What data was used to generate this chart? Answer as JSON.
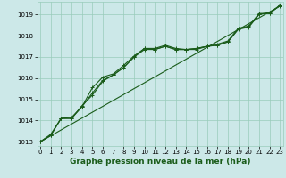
{
  "title": "Graphe pression niveau de la mer (hPa)",
  "background_color": "#cce8e8",
  "grid_color": "#99ccbb",
  "line_color": "#1a5c1a",
  "x_ticks": [
    0,
    1,
    2,
    3,
    4,
    5,
    6,
    7,
    8,
    9,
    10,
    11,
    12,
    13,
    14,
    15,
    16,
    17,
    18,
    19,
    20,
    21,
    22,
    23
  ],
  "ylim": [
    1012.8,
    1019.6
  ],
  "xlim": [
    -0.3,
    23.3
  ],
  "y_ticks": [
    1013,
    1014,
    1015,
    1016,
    1017,
    1018,
    1019
  ],
  "series": [
    [
      1013.0,
      1013.3,
      1014.1,
      1014.1,
      1014.7,
      1015.2,
      1015.85,
      1016.15,
      1016.5,
      1017.0,
      1017.4,
      1017.35,
      1017.5,
      1017.35,
      1017.35,
      1017.4,
      1017.5,
      1017.55,
      1017.7,
      1018.3,
      1018.4,
      1019.0,
      1019.1,
      1019.4
    ],
    [
      1013.0,
      1013.35,
      1014.1,
      1014.15,
      1014.65,
      1015.55,
      1016.05,
      1016.2,
      1016.6,
      1017.05,
      1017.4,
      1017.4,
      1017.55,
      1017.4,
      1017.35,
      1017.4,
      1017.5,
      1017.6,
      1017.75,
      1018.35,
      1018.45,
      1019.05,
      1019.05,
      1019.45
    ],
    [
      1013.0,
      1013.3,
      1014.1,
      1014.1,
      1014.65,
      1015.3,
      1015.9,
      1016.15,
      1016.5,
      1017.0,
      1017.35,
      1017.35,
      1017.5,
      1017.35,
      1017.35,
      1017.35,
      1017.5,
      1017.55,
      1017.72,
      1018.32,
      1018.42,
      1019.02,
      1019.05,
      1019.42
    ]
  ],
  "straight_line": [
    1013.0,
    1019.4
  ],
  "marker": "+",
  "marker_size": 3.5,
  "linewidth": 0.8,
  "tick_fontsize": 5,
  "label_fontsize": 6.5
}
